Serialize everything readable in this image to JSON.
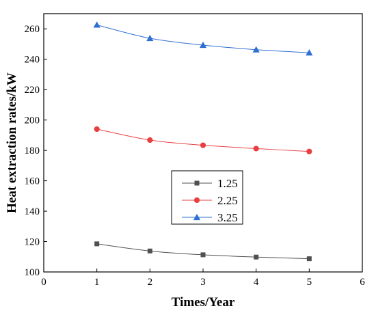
{
  "chart_data": {
    "type": "line",
    "xlabel": "Times/Year",
    "ylabel": "Heat extraction rates/kW",
    "xlim": [
      0,
      6
    ],
    "ylim": [
      100,
      270
    ],
    "xticks": [
      0,
      1,
      2,
      3,
      4,
      5,
      6
    ],
    "yticks": [
      100,
      120,
      140,
      160,
      180,
      200,
      220,
      240,
      260
    ],
    "x": [
      1,
      2,
      3,
      4,
      5
    ],
    "series": [
      {
        "name": "1.25",
        "values": [
          118.5,
          113.8,
          111.3,
          109.8,
          108.7
        ],
        "color": "#505050",
        "marker": "square"
      },
      {
        "name": "2.25",
        "values": [
          194.0,
          186.8,
          183.4,
          181.2,
          179.3
        ],
        "color": "#e83f40",
        "marker": "circle"
      },
      {
        "name": "3.25",
        "values": [
          262.6,
          253.8,
          249.3,
          246.3,
          244.3
        ],
        "color": "#2f6fd1",
        "marker": "triangle"
      }
    ],
    "grid": false,
    "legend_position": "center"
  }
}
